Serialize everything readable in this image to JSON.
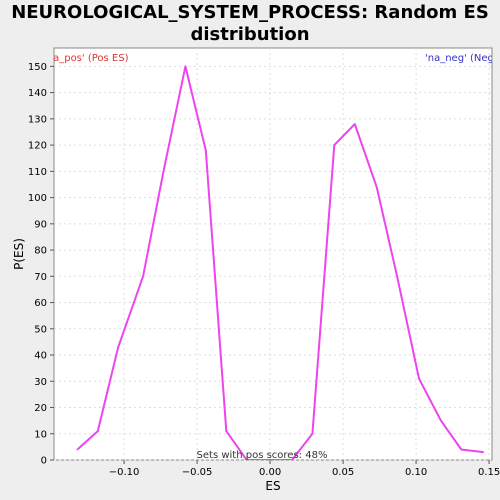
{
  "chart_data": {
    "type": "line",
    "title_lines": [
      "NEUROLOGICAL_SYSTEM_PROCESS: Random ES",
      "distribution"
    ],
    "xlabel": "ES",
    "ylabel": "P(ES)",
    "xlim": [
      -0.148,
      0.152
    ],
    "ylim": [
      0,
      157
    ],
    "x_ticks": [
      -0.1,
      -0.05,
      0.0,
      0.05,
      0.1,
      0.15
    ],
    "x_tick_labels": [
      "−0.10",
      "−0.05",
      "0.00",
      "0.05",
      "0.10",
      "0.15"
    ],
    "y_ticks": [
      0,
      10,
      20,
      30,
      40,
      50,
      60,
      70,
      80,
      90,
      100,
      110,
      120,
      130,
      140,
      150
    ],
    "grid": true,
    "series": [
      {
        "color": "#ee44ee",
        "x": [
          -0.132,
          -0.118,
          -0.104,
          -0.087,
          -0.073,
          -0.058,
          -0.044,
          -0.03,
          -0.016,
          0.0,
          0.015,
          0.029,
          0.044,
          0.058,
          0.073,
          0.087,
          0.102,
          0.117,
          0.131,
          0.146
        ],
        "y": [
          4,
          11,
          43,
          70,
          110,
          150,
          118,
          11,
          0,
          0,
          0,
          10,
          120,
          128,
          104,
          70,
          31,
          15,
          4,
          3
        ]
      }
    ],
    "legend_left": "'na_pos' (Pos ES)",
    "legend_right": "'na_neg' (Neg ES)",
    "legend_left_color": "#dd3333",
    "legend_right_color": "#3333cc",
    "annotation": "Sets with pos scores: 48%"
  }
}
